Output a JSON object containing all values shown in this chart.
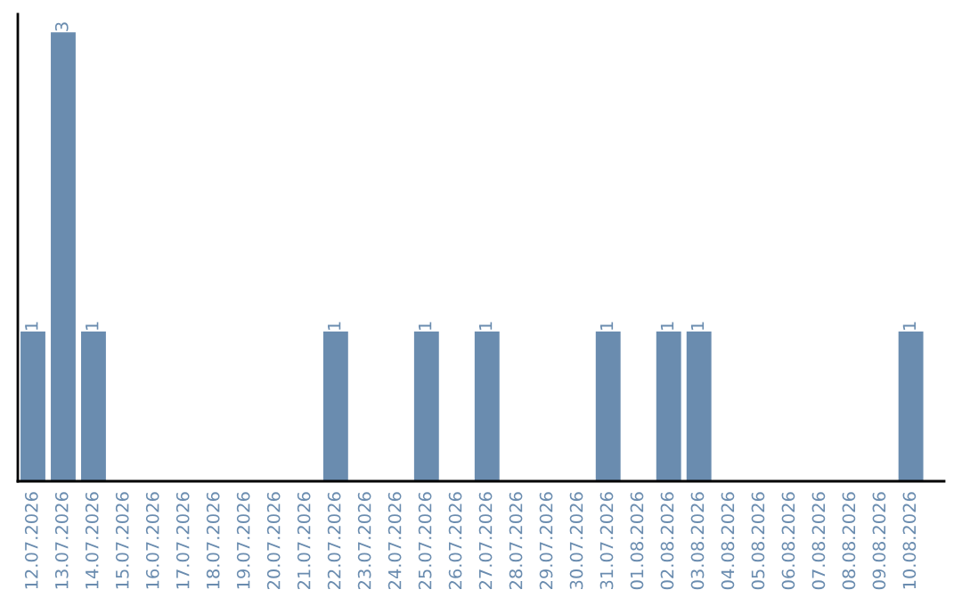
{
  "chart_data": {
    "type": "bar",
    "categories": [
      "12.07.2026",
      "13.07.2026",
      "14.07.2026",
      "15.07.2026",
      "16.07.2026",
      "17.07.2026",
      "18.07.2026",
      "19.07.2026",
      "20.07.2026",
      "21.07.2026",
      "22.07.2026",
      "23.07.2026",
      "24.07.2026",
      "25.07.2026",
      "26.07.2026",
      "27.07.2026",
      "28.07.2026",
      "29.07.2026",
      "30.07.2026",
      "31.07.2026",
      "01.08.2026",
      "02.08.2026",
      "03.08.2026",
      "04.08.2026",
      "05.08.2026",
      "06.08.2026",
      "07.08.2026",
      "08.08.2026",
      "09.08.2026",
      "10.08.2026"
    ],
    "values": [
      1,
      3,
      1,
      0,
      0,
      0,
      0,
      0,
      0,
      0,
      1,
      0,
      0,
      1,
      0,
      1,
      0,
      0,
      0,
      1,
      0,
      1,
      1,
      0,
      0,
      0,
      0,
      0,
      0,
      1
    ],
    "value_labels": [
      "1",
      "3",
      "1",
      null,
      null,
      null,
      null,
      null,
      null,
      null,
      "1",
      null,
      null,
      "1",
      null,
      "1",
      null,
      null,
      null,
      "1",
      null,
      "1",
      "1",
      null,
      null,
      null,
      null,
      null,
      null,
      "1"
    ],
    "color": "#6a8caf",
    "tick_labels": "x",
    "grid": false,
    "legend": false
  }
}
